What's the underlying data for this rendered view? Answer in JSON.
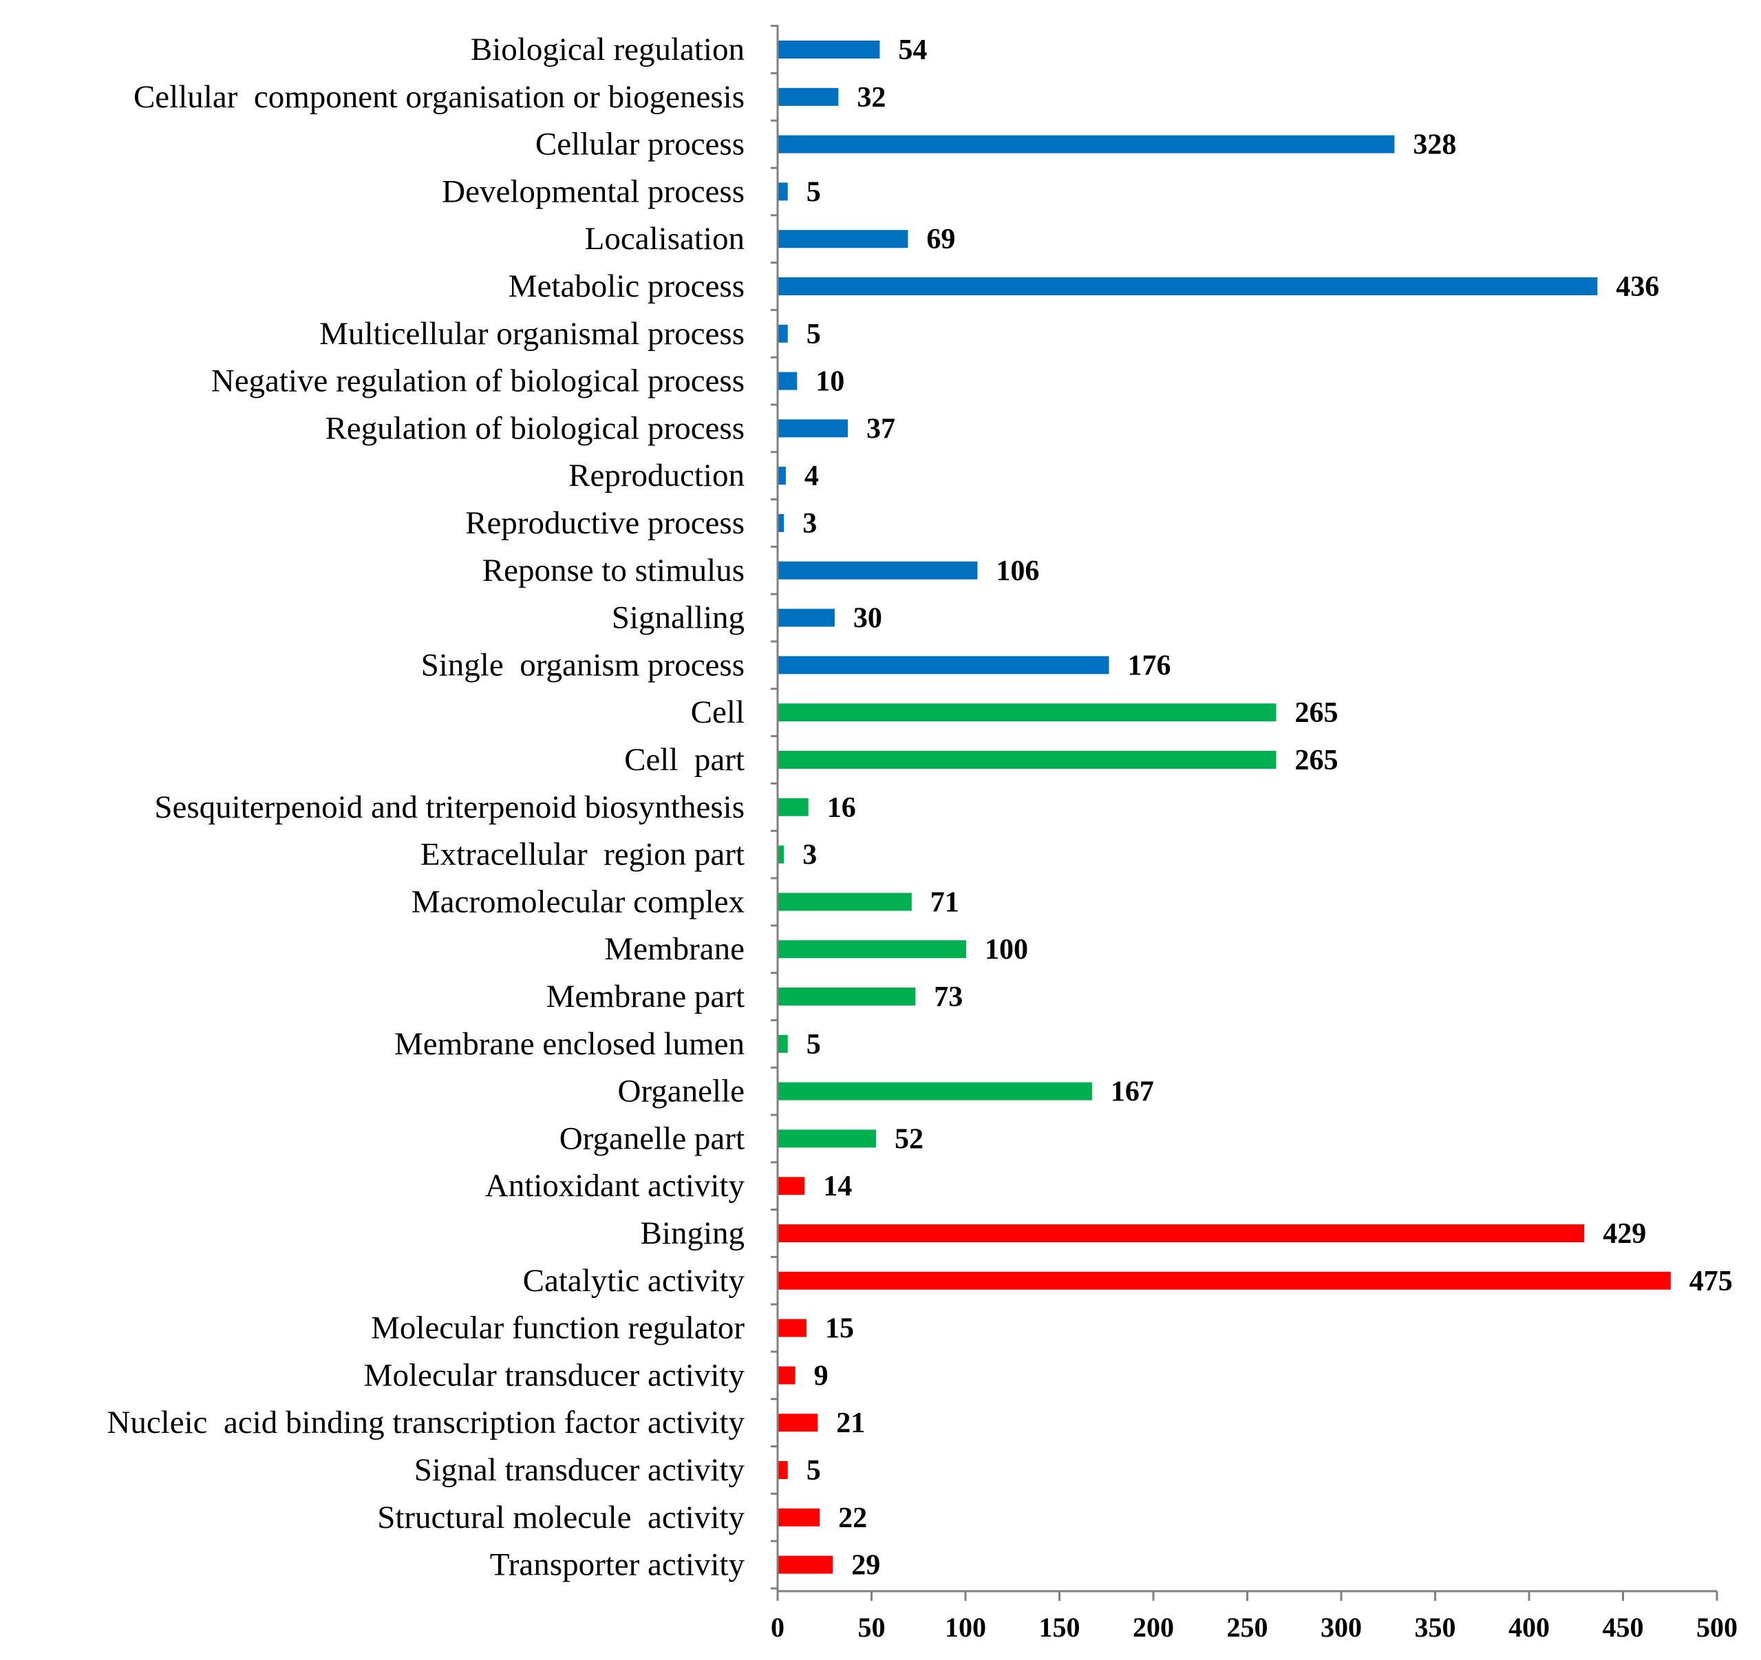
{
  "chart_data": {
    "type": "bar",
    "orientation": "horizontal",
    "title": "",
    "xlabel": "",
    "ylabel": "",
    "xlim": [
      0,
      500
    ],
    "x_ticks": [
      "0",
      "50",
      "100",
      "150",
      "200",
      "250",
      "300",
      "350",
      "400",
      "450",
      "500"
    ],
    "grid": false,
    "legend": "none",
    "colors": {
      "biological_process": "#0070C0",
      "cellular_component": "#00B050",
      "molecular_function": "#FF0000"
    },
    "groups": [
      {
        "name": "biological_process",
        "color": "#0070C0",
        "categories": [
          "Biological regulation",
          "Cellular  component organisation or biogenesis",
          "Cellular process",
          "Developmental process",
          "Localisation",
          "Metabolic process",
          "Multicellular organismal process",
          "Negative regulation of biological process",
          "Regulation of biological process",
          "Reproduction",
          "Reproductive process",
          "Reponse to stimulus",
          "Signalling",
          "Single  organism process"
        ],
        "values": [
          54,
          32,
          328,
          5,
          69,
          436,
          5,
          10,
          37,
          4,
          3,
          106,
          30,
          176
        ]
      },
      {
        "name": "cellular_component",
        "color": "#00B050",
        "categories": [
          "Cell",
          "Cell  part",
          "Sesquiterpenoid and triterpenoid biosynthesis",
          "Extracellular  region part",
          "Macromolecular complex",
          "Membrane",
          "Membrane part",
          "Membrane enclosed lumen",
          "Organelle",
          "Organelle part"
        ],
        "values": [
          265,
          265,
          16,
          3,
          71,
          100,
          73,
          5,
          167,
          52
        ]
      },
      {
        "name": "molecular_function",
        "color": "#FF0000",
        "categories": [
          "Antioxidant activity",
          "Binging",
          "Catalytic activity",
          "Molecular function regulator",
          "Molecular transducer activity",
          "Nucleic  acid binding transcription factor activity",
          "Signal transducer activity",
          "Structural molecule  activity",
          "Transporter activity"
        ],
        "values": [
          14,
          429,
          475,
          15,
          9,
          21,
          5,
          22,
          29
        ]
      }
    ]
  }
}
